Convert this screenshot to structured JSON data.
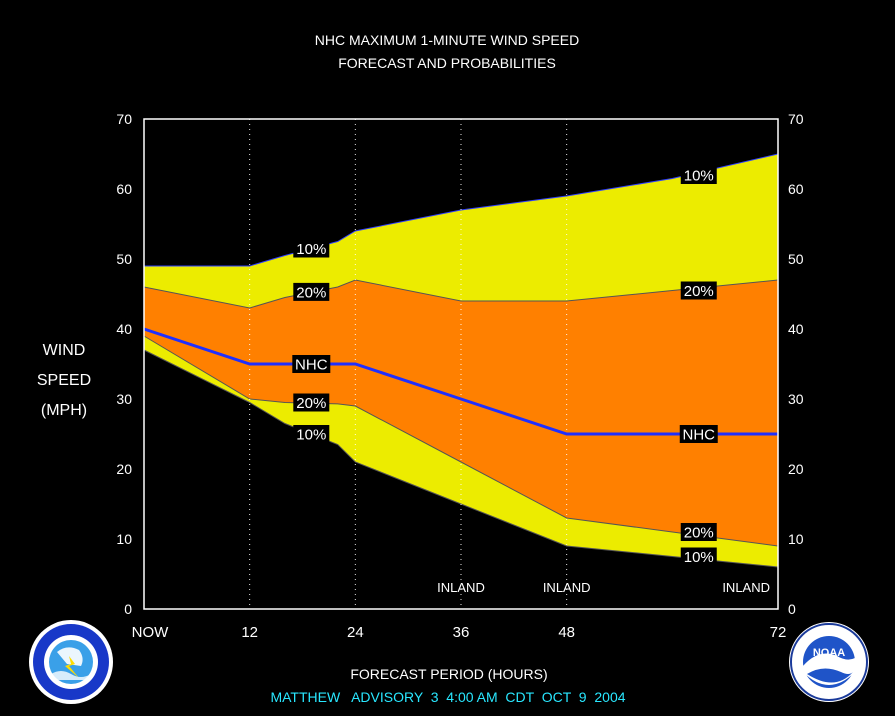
{
  "colors": {
    "background": "#000000",
    "outer_band": "#ecec00",
    "inner_band": "#ff8000",
    "nhc_line": "#1f2fff",
    "plot_border": "#ffffff",
    "footer_text": "#29e7ff"
  },
  "header": {
    "title_line1": "NHC MAXIMUM 1-MINUTE WIND SPEED",
    "title_line2": "FORECAST AND PROBABILITIES"
  },
  "footer": {
    "advisory": "MATTHEW   ADVISORY  3  4:00 AM  CDT  OCT  9  2004"
  },
  "logos": {
    "nws": {
      "name": "National Weather Service",
      "ring_text": "NATIONAL WEATHER SERVICE"
    },
    "noaa": {
      "name": "NOAA",
      "center_text": "NOAA",
      "ring_text": "U.S. DEPARTMENT OF COMMERCE • NATIONAL OCEANIC AND ATMOSPHERIC ADMINISTRATION"
    }
  },
  "chart_data": {
    "type": "area",
    "title": "NHC MAXIMUM 1-MINUTE WIND SPEED FORECAST AND PROBABILITIES",
    "xlabel": "FORECAST PERIOD (HOURS)",
    "ylabel_lines": [
      "WIND",
      "SPEED",
      "(MPH)"
    ],
    "xlim": [
      0,
      72
    ],
    "ylim": [
      0,
      70
    ],
    "x_ticks": [
      {
        "value": 0,
        "label": "NOW"
      },
      {
        "value": 12,
        "label": "12"
      },
      {
        "value": 24,
        "label": "24"
      },
      {
        "value": 36,
        "label": "36"
      },
      {
        "value": 48,
        "label": "48"
      },
      {
        "value": 72,
        "label": "72"
      }
    ],
    "y_ticks": [
      0,
      10,
      20,
      30,
      40,
      50,
      60,
      70
    ],
    "dotted_vertical_lines": [
      12,
      24,
      36,
      48
    ],
    "inland_markers": [
      {
        "x": 36,
        "label": "INLAND"
      },
      {
        "x": 48,
        "label": "INLAND"
      },
      {
        "x": 72,
        "label": "INLAND"
      }
    ],
    "series": [
      {
        "name": "10% upper",
        "x": [
          0,
          12,
          16,
          22,
          24,
          36,
          48,
          60,
          72
        ],
        "values": [
          49,
          49,
          50.5,
          52.5,
          54,
          57,
          59,
          61.5,
          65
        ]
      },
      {
        "name": "20% upper",
        "x": [
          0,
          12,
          16,
          22,
          24,
          36,
          48,
          60,
          72
        ],
        "values": [
          46,
          43,
          44.5,
          46,
          47,
          44,
          44,
          45.5,
          47
        ]
      },
      {
        "name": "NHC",
        "x": [
          0,
          12,
          16,
          22,
          24,
          36,
          48,
          60,
          72
        ],
        "values": [
          40,
          35,
          35,
          35,
          35,
          30,
          25,
          25,
          25
        ]
      },
      {
        "name": "20% lower",
        "x": [
          0,
          12,
          16,
          22,
          24,
          36,
          48,
          60,
          72
        ],
        "values": [
          39,
          30,
          29.5,
          29.3,
          29,
          21,
          13,
          11,
          9
        ]
      },
      {
        "name": "10% lower",
        "x": [
          0,
          12,
          16,
          22,
          24,
          36,
          48,
          60,
          72
        ],
        "values": [
          37,
          29.5,
          26.5,
          23.5,
          21,
          15,
          9,
          7.5,
          6
        ]
      }
    ],
    "band_labels": [
      {
        "text": "10%",
        "x": 19,
        "y": 51.5
      },
      {
        "text": "20%",
        "x": 19,
        "y": 45.3
      },
      {
        "text": "NHC",
        "x": 19,
        "y": 35
      },
      {
        "text": "20%",
        "x": 19,
        "y": 29.5
      },
      {
        "text": "10%",
        "x": 19,
        "y": 25
      },
      {
        "text": "10%",
        "x": 63,
        "y": 62
      },
      {
        "text": "20%",
        "x": 63,
        "y": 45.5
      },
      {
        "text": "NHC",
        "x": 63,
        "y": 25
      },
      {
        "text": "20%",
        "x": 63,
        "y": 11
      },
      {
        "text": "10%",
        "x": 63,
        "y": 7.5
      }
    ]
  }
}
